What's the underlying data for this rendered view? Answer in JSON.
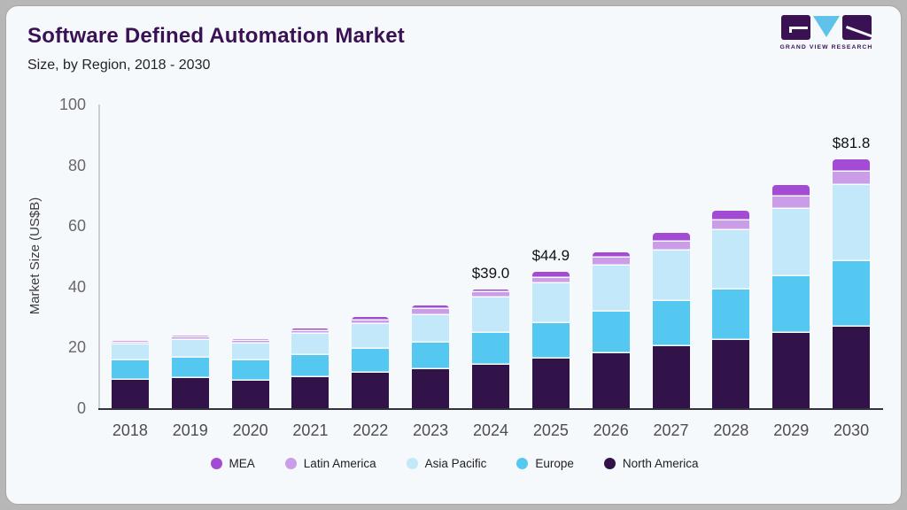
{
  "page": {
    "outer_background": "#b7b7b7",
    "card_background": "#f6f9fc"
  },
  "header": {
    "title": "Software Defined Automation Market",
    "subtitle": "Size, by Region, 2018 - 2030",
    "title_color": "#3a1253",
    "logo": {
      "caption": "GRAND VIEW RESEARCH"
    }
  },
  "chart_data": {
    "type": "bar",
    "stacked": true,
    "title": "Software Defined Automation Market",
    "subtitle": "Size, by Region, 2018 - 2030",
    "ylabel": "Market Size (US$B)",
    "ylim": [
      0,
      100
    ],
    "yticks": [
      0,
      20,
      40,
      60,
      80,
      100
    ],
    "grid": false,
    "legend_position": "bottom",
    "categories": [
      "2018",
      "2019",
      "2020",
      "2021",
      "2022",
      "2023",
      "2024",
      "2025",
      "2026",
      "2027",
      "2028",
      "2029",
      "2030"
    ],
    "series": [
      {
        "name": "North America",
        "color": "#311349",
        "values": [
          9.2,
          9.9,
          9.1,
          10.2,
          11.6,
          12.8,
          14.3,
          16.3,
          18.2,
          20.4,
          22.4,
          24.8,
          26.8
        ]
      },
      {
        "name": "Europe",
        "color": "#55c8f1",
        "values": [
          6.4,
          6.7,
          6.5,
          7.2,
          8.0,
          8.8,
          10.5,
          11.6,
          13.6,
          14.8,
          16.8,
          18.6,
          21.5
        ]
      },
      {
        "name": "Asia Pacific",
        "color": "#c3e8f9",
        "values": [
          5.3,
          5.9,
          5.7,
          7.0,
          8.0,
          9.0,
          11.6,
          13.3,
          15.1,
          16.8,
          19.3,
          22.2,
          25.1
        ]
      },
      {
        "name": "Latin America",
        "color": "#cb9de8",
        "values": [
          0.7,
          0.8,
          0.9,
          1.1,
          1.4,
          2.0,
          1.8,
          1.8,
          2.7,
          2.7,
          3.2,
          4.2,
          4.5
        ]
      },
      {
        "name": "MEA",
        "color": "#a44bd3",
        "values": [
          0.5,
          0.5,
          0.6,
          0.8,
          1.0,
          1.1,
          0.8,
          1.9,
          1.6,
          2.9,
          3.4,
          3.6,
          3.9
        ]
      }
    ],
    "totals": [
      22.1,
      23.8,
      22.8,
      26.3,
      30.0,
      33.7,
      39.0,
      44.9,
      51.2,
      57.6,
      65.1,
      73.4,
      81.8
    ],
    "legend": [
      "MEA",
      "Latin America",
      "Asia Pacific",
      "Europe",
      "North America"
    ],
    "annotations": [
      {
        "category": "2024",
        "text": "$39.0"
      },
      {
        "category": "2025",
        "text": "$44.9"
      },
      {
        "category": "2030",
        "text": "$81.8"
      }
    ]
  }
}
